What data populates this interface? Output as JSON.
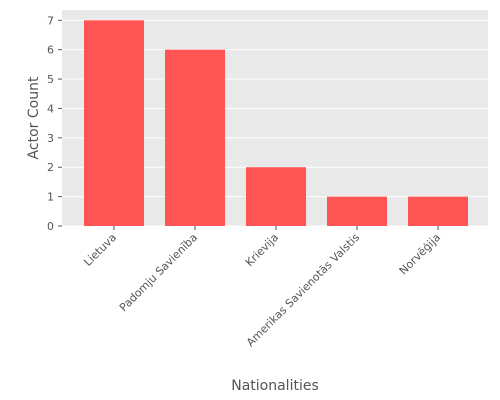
{
  "chart_data": {
    "type": "bar",
    "title": "",
    "xlabel": "Nationalities",
    "ylabel": "Actor Count",
    "categories": [
      "Lietuva",
      "Padomju Savienība",
      "Krievija",
      "Amerikas Savienotās Valstis",
      "Norvēģija"
    ],
    "values": [
      7,
      6,
      2,
      1,
      1
    ],
    "ylim": [
      0,
      7.35
    ],
    "yticks": [
      0,
      1,
      2,
      3,
      4,
      5,
      6,
      7
    ],
    "grid": true,
    "colors": {
      "bar": "#ff5555",
      "panel_background": "#e9e9e9",
      "grid": "#ffffff",
      "text": "#555555"
    }
  }
}
